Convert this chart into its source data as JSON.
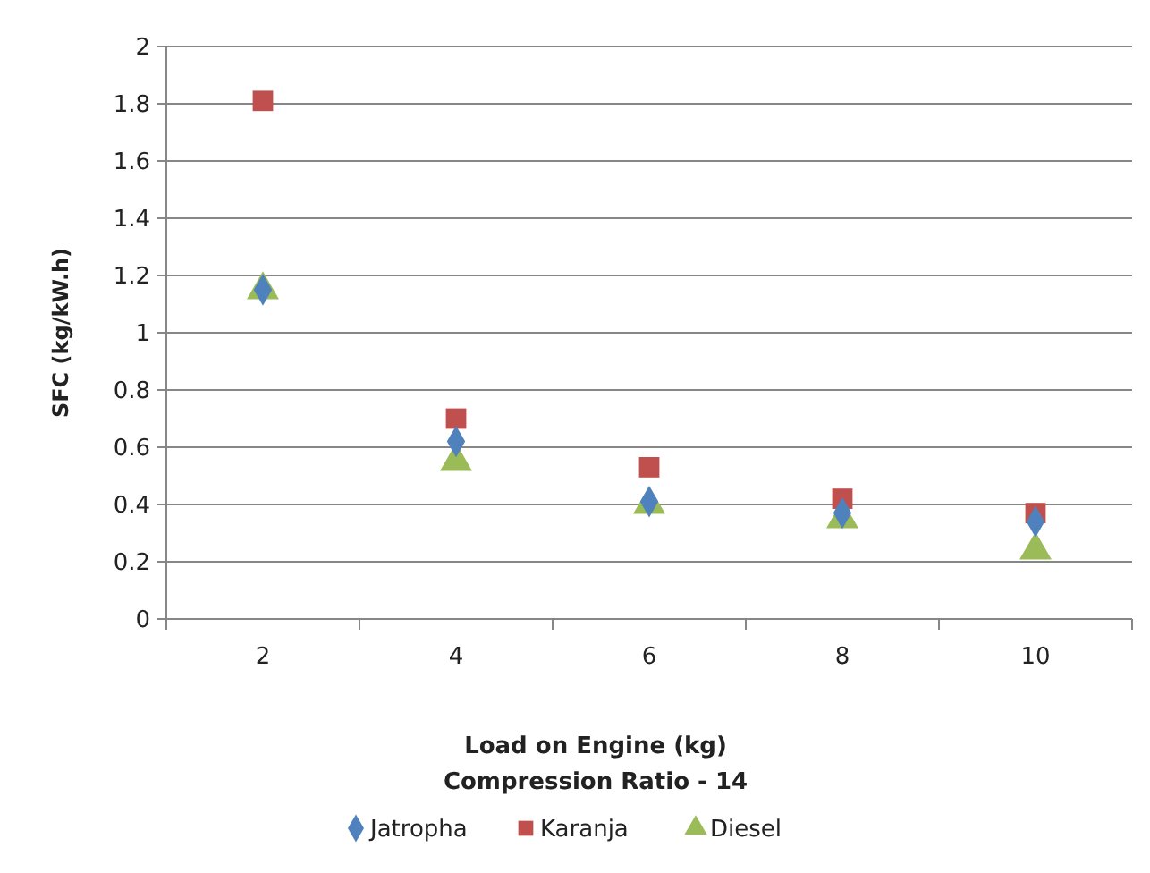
{
  "chart_data": {
    "type": "scatter",
    "xlabel": "Load on Engine (kg)\nCompression Ratio - 14",
    "ylabel": "SFC (kg/kW.h)",
    "categories": [
      "2",
      "4",
      "6",
      "8",
      "10"
    ],
    "ylim": [
      0,
      2
    ],
    "yticks": [
      0,
      0.2,
      0.4,
      0.6,
      0.8,
      1,
      1.2,
      1.4,
      1.6,
      1.8,
      2
    ],
    "grid": "y",
    "legend": "bottom",
    "series": [
      {
        "name": "Jatropha",
        "color": "#4f81bd",
        "marker": "diamond",
        "values": [
          1.15,
          0.62,
          0.41,
          0.37,
          0.34
        ]
      },
      {
        "name": "Karanja",
        "color": "#c0504d",
        "marker": "square",
        "values": [
          1.81,
          0.7,
          0.53,
          0.42,
          0.37
        ]
      },
      {
        "name": "Diesel",
        "color": "#9bbb59",
        "marker": "triangle",
        "values": [
          1.15,
          0.55,
          0.4,
          0.35,
          0.24
        ]
      }
    ]
  }
}
